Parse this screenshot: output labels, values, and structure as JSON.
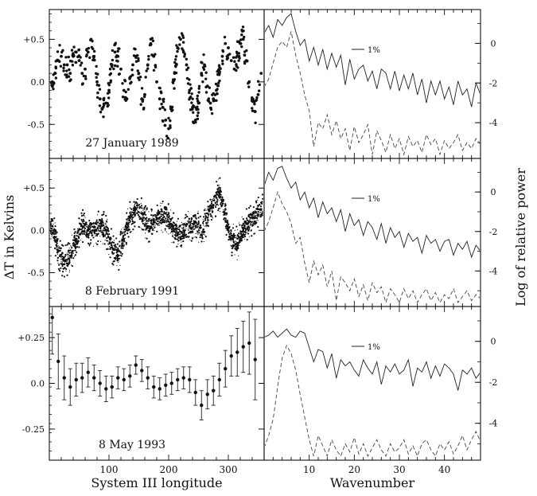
{
  "figure": {
    "y_axis_label_left": "ΔT in Kelvins",
    "x_axis_label_left": "System III longitude",
    "y_axis_label_right": "Log of relative power",
    "x_axis_label_right": "Wavenumber"
  },
  "chart_data": [
    {
      "type": "scatter",
      "panel": "top-left",
      "annotation": "27 January 1989",
      "xlim": [
        0,
        360
      ],
      "ylim": [
        -0.9,
        0.85
      ],
      "x_ticks": [
        100,
        200,
        300
      ],
      "y_ticks": [
        0.5,
        0.0,
        -0.5
      ],
      "y_tick_labels": [
        "+0.5",
        "0.0",
        "-0.5"
      ],
      "series": [
        {
          "style": "dots",
          "x": [
            5,
            10,
            15,
            20,
            25,
            30,
            35,
            40,
            45,
            50,
            55,
            60,
            65,
            70,
            75,
            80,
            85,
            90,
            95,
            100,
            105,
            110,
            115,
            120,
            125,
            130,
            135,
            140,
            145,
            150,
            155,
            160,
            165,
            170,
            175,
            180,
            185,
            190,
            195,
            200,
            205,
            210,
            215,
            220,
            225,
            230,
            235,
            240,
            245,
            250,
            255,
            260,
            265,
            270,
            275,
            280,
            285,
            290,
            295,
            300,
            305,
            310,
            315,
            320,
            325,
            330,
            335,
            340,
            345,
            350,
            355
          ],
          "y": [
            0.0,
            0.1,
            0.25,
            0.3,
            0.2,
            0.2,
            0.1,
            0.3,
            0.35,
            0.25,
            0.1,
            0.15,
            0.35,
            0.5,
            0.3,
            0.0,
            -0.2,
            -0.3,
            -0.25,
            -0.1,
            0.2,
            0.35,
            0.3,
            0.15,
            -0.1,
            -0.2,
            0.05,
            0.2,
            0.3,
            0.1,
            -0.2,
            -0.15,
            0.2,
            0.45,
            0.3,
            0.0,
            -0.2,
            -0.3,
            -0.45,
            -0.55,
            -0.3,
            0.1,
            0.4,
            0.5,
            0.35,
            0.2,
            -0.1,
            -0.3,
            -0.45,
            -0.25,
            0.1,
            0.2,
            -0.05,
            -0.25,
            -0.2,
            -0.1,
            0.1,
            0.3,
            0.45,
            0.4,
            0.25,
            0.15,
            0.3,
            0.45,
            0.5,
            0.25,
            0.0,
            -0.2,
            -0.35,
            -0.15,
            0.1
          ]
        }
      ]
    },
    {
      "type": "line",
      "panel": "top-right",
      "legend_label": "1%",
      "xlim": [
        0,
        48
      ],
      "ylim": [
        -5.8,
        1.7
      ],
      "y_ticks": [
        0,
        -2,
        -4
      ],
      "y_tick_labels": [
        "0",
        "-2",
        "-4"
      ],
      "series": [
        {
          "style": "solid",
          "x": [
            0,
            1,
            2,
            3,
            4,
            5,
            6,
            7,
            8,
            9,
            10,
            11,
            12,
            13,
            14,
            15,
            16,
            17,
            18,
            19,
            20,
            21,
            22,
            23,
            24,
            25,
            26,
            27,
            28,
            29,
            30,
            31,
            32,
            33,
            34,
            35,
            36,
            37,
            38,
            39,
            40,
            41,
            42,
            43,
            44,
            45,
            46,
            47,
            48
          ],
          "y": [
            0.5,
            0.9,
            0.3,
            1.2,
            0.9,
            1.3,
            1.5,
            0.6,
            -0.1,
            0.2,
            -0.9,
            -0.2,
            -1.1,
            -0.3,
            -1.3,
            -0.5,
            -1.2,
            -0.6,
            -2.1,
            -0.8,
            -1.8,
            -1.3,
            -1.1,
            -1.9,
            -1.4,
            -2.3,
            -1.3,
            -1.5,
            -2.3,
            -1.4,
            -2.4,
            -1.6,
            -2.3,
            -1.5,
            -2.6,
            -1.8,
            -3.0,
            -1.9,
            -2.6,
            -1.9,
            -2.8,
            -2.2,
            -3.1,
            -1.9,
            -2.6,
            -2.3,
            -3.2,
            -2.0,
            -2.6
          ]
        },
        {
          "style": "dashed",
          "x": [
            0,
            1,
            2,
            3,
            4,
            5,
            6,
            7,
            8,
            9,
            10,
            11,
            12,
            13,
            14,
            15,
            16,
            17,
            18,
            19,
            20,
            21,
            22,
            23,
            24,
            25,
            26,
            27,
            28,
            29,
            30,
            31,
            32,
            33,
            34,
            35,
            36,
            37,
            38,
            39,
            40,
            41,
            42,
            43,
            44,
            45,
            46,
            47,
            48
          ],
          "y": [
            -2.2,
            -1.8,
            -1.0,
            -0.2,
            0.1,
            -0.2,
            0.6,
            -0.6,
            -1.5,
            -2.6,
            -3.4,
            -5.2,
            -4.0,
            -4.3,
            -3.6,
            -4.6,
            -3.9,
            -4.8,
            -4.3,
            -5.4,
            -4.2,
            -5.0,
            -4.6,
            -4.1,
            -5.6,
            -4.4,
            -4.9,
            -5.5,
            -4.6,
            -5.3,
            -4.8,
            -5.6,
            -4.7,
            -5.2,
            -4.9,
            -5.5,
            -4.6,
            -5.1,
            -4.8,
            -5.6,
            -4.9,
            -5.3,
            -5.0,
            -4.6,
            -5.4,
            -5.0,
            -5.3,
            -4.8,
            -5.1
          ]
        }
      ]
    },
    {
      "type": "scatter",
      "panel": "middle-left",
      "annotation": "8 February 1991",
      "xlim": [
        0,
        360
      ],
      "ylim": [
        -0.9,
        0.85
      ],
      "y_ticks": [
        0.5,
        0.0,
        -0.5
      ],
      "y_tick_labels": [
        "+0.5",
        "0.0",
        "-0.5"
      ],
      "series": [
        {
          "style": "dense-dots",
          "x": [
            5,
            15,
            25,
            35,
            45,
            55,
            65,
            75,
            85,
            95,
            105,
            115,
            125,
            135,
            145,
            155,
            165,
            175,
            185,
            195,
            205,
            215,
            225,
            235,
            245,
            255,
            265,
            275,
            285,
            295,
            305,
            315,
            325,
            335,
            345,
            355
          ],
          "y": [
            0.05,
            -0.25,
            -0.4,
            -0.3,
            -0.1,
            0.05,
            0.0,
            0.0,
            0.05,
            0.0,
            -0.2,
            -0.3,
            -0.1,
            0.15,
            0.25,
            0.2,
            0.05,
            0.1,
            0.15,
            0.2,
            0.05,
            -0.05,
            0.0,
            0.05,
            0.1,
            -0.05,
            0.15,
            0.3,
            0.45,
            0.2,
            -0.1,
            -0.15,
            0.0,
            0.1,
            0.15,
            0.25
          ]
        }
      ]
    },
    {
      "type": "line",
      "panel": "middle-right",
      "legend_label": "1%",
      "xlim": [
        0,
        48
      ],
      "ylim": [
        -5.8,
        1.7
      ],
      "y_ticks": [
        0,
        -2,
        -4
      ],
      "y_tick_labels": [
        "0",
        "-2",
        "-4"
      ],
      "series": [
        {
          "style": "solid",
          "x": [
            0,
            1,
            2,
            3,
            4,
            5,
            6,
            7,
            8,
            9,
            10,
            11,
            12,
            13,
            14,
            15,
            16,
            17,
            18,
            19,
            20,
            21,
            22,
            23,
            24,
            25,
            26,
            27,
            28,
            29,
            30,
            31,
            32,
            33,
            34,
            35,
            36,
            37,
            38,
            39,
            40,
            41,
            42,
            43,
            44,
            45,
            46,
            47,
            48
          ],
          "y": [
            0.3,
            1.0,
            0.6,
            1.2,
            1.3,
            0.7,
            0.2,
            0.5,
            -0.4,
            0.0,
            -0.8,
            -0.3,
            -1.3,
            -0.5,
            -1.1,
            -0.8,
            -1.5,
            -0.9,
            -2.0,
            -1.1,
            -1.7,
            -1.4,
            -2.2,
            -1.5,
            -1.8,
            -2.4,
            -1.6,
            -2.6,
            -1.8,
            -2.3,
            -2.0,
            -2.8,
            -2.1,
            -2.5,
            -2.3,
            -3.1,
            -2.2,
            -2.6,
            -2.4,
            -3.0,
            -2.5,
            -2.4,
            -3.2,
            -2.6,
            -2.9,
            -2.5,
            -3.3,
            -2.7,
            -3.0
          ]
        },
        {
          "style": "dashed",
          "x": [
            0,
            1,
            2,
            3,
            4,
            5,
            6,
            7,
            8,
            9,
            10,
            11,
            12,
            13,
            14,
            15,
            16,
            17,
            18,
            19,
            20,
            21,
            22,
            23,
            24,
            25,
            26,
            27,
            28,
            29,
            30,
            31,
            32,
            33,
            34,
            35,
            36,
            37,
            38,
            39,
            40,
            41,
            42,
            43,
            44,
            45,
            46,
            47,
            48
          ],
          "y": [
            -2.0,
            -1.5,
            -0.8,
            0.0,
            -0.6,
            -1.0,
            -1.6,
            -2.6,
            -2.3,
            -3.6,
            -4.6,
            -3.5,
            -4.2,
            -3.7,
            -4.8,
            -4.0,
            -5.5,
            -4.3,
            -4.6,
            -5.0,
            -4.4,
            -5.3,
            -4.7,
            -5.5,
            -4.6,
            -5.1,
            -4.8,
            -5.6,
            -4.9,
            -5.2,
            -5.6,
            -4.9,
            -5.4,
            -5.0,
            -5.6,
            -5.2,
            -4.9,
            -5.5,
            -5.1,
            -5.6,
            -5.2,
            -5.4,
            -4.9,
            -5.6,
            -5.3,
            -5.0,
            -5.5,
            -5.2,
            -5.4
          ]
        }
      ]
    },
    {
      "type": "scatter",
      "panel": "bottom-left",
      "annotation": "8 May 1993",
      "xlim": [
        0,
        360
      ],
      "ylim": [
        -0.42,
        0.42
      ],
      "x_ticks": [
        100,
        200,
        300
      ],
      "x_tick_labels": [
        "100",
        "200",
        "300"
      ],
      "y_ticks": [
        0.25,
        0.0,
        -0.25
      ],
      "y_tick_labels": [
        "+0.25",
        "0.0",
        "-0.25"
      ],
      "series": [
        {
          "style": "points-with-error-bars",
          "x": [
            5,
            15,
            25,
            35,
            45,
            55,
            65,
            75,
            85,
            95,
            105,
            115,
            125,
            135,
            145,
            155,
            165,
            175,
            185,
            195,
            205,
            215,
            225,
            235,
            245,
            255,
            265,
            275,
            285,
            295,
            305,
            315,
            325,
            335,
            345
          ],
          "y": [
            0.36,
            0.12,
            0.03,
            -0.02,
            0.02,
            0.03,
            0.06,
            0.03,
            0.0,
            -0.03,
            -0.02,
            0.03,
            0.02,
            0.04,
            0.1,
            0.07,
            0.03,
            -0.02,
            -0.03,
            -0.01,
            0.0,
            0.02,
            0.03,
            0.02,
            -0.05,
            -0.12,
            -0.06,
            -0.04,
            0.02,
            0.08,
            0.15,
            0.17,
            0.2,
            0.22,
            0.13
          ],
          "err": [
            0.2,
            0.15,
            0.12,
            0.1,
            0.09,
            0.08,
            0.08,
            0.07,
            0.07,
            0.07,
            0.06,
            0.06,
            0.06,
            0.06,
            0.05,
            0.06,
            0.06,
            0.06,
            0.06,
            0.06,
            0.06,
            0.06,
            0.06,
            0.07,
            0.07,
            0.08,
            0.08,
            0.08,
            0.09,
            0.1,
            0.11,
            0.13,
            0.14,
            0.17,
            0.22
          ]
        }
      ]
    },
    {
      "type": "line",
      "panel": "bottom-right",
      "legend_label": "1%",
      "xlim": [
        0,
        48
      ],
      "ylim": [
        -5.8,
        1.7
      ],
      "x_ticks": [
        10,
        20,
        30,
        40
      ],
      "x_tick_labels": [
        "10",
        "20",
        "30",
        "40"
      ],
      "y_ticks": [
        0,
        -2,
        -4
      ],
      "y_tick_labels": [
        "0",
        "-2",
        "-4"
      ],
      "series": [
        {
          "style": "solid",
          "x": [
            0,
            1,
            2,
            3,
            4,
            5,
            6,
            7,
            8,
            9,
            10,
            11,
            12,
            13,
            14,
            15,
            16,
            17,
            18,
            19,
            20,
            21,
            22,
            23,
            24,
            25,
            26,
            27,
            28,
            29,
            30,
            31,
            32,
            33,
            34,
            35,
            36,
            37,
            38,
            39,
            40,
            41,
            42,
            43,
            44,
            45,
            46,
            47,
            48
          ],
          "y": [
            0.2,
            0.3,
            0.5,
            0.2,
            0.4,
            0.6,
            0.3,
            0.2,
            0.5,
            0.4,
            -0.3,
            -1.0,
            -0.4,
            -0.5,
            -1.3,
            -0.6,
            -1.8,
            -0.9,
            -1.2,
            -1.0,
            -1.4,
            -1.7,
            -0.9,
            -1.3,
            -1.6,
            -1.0,
            -2.1,
            -1.2,
            -1.5,
            -1.1,
            -1.6,
            -1.4,
            -0.9,
            -2.2,
            -1.3,
            -1.5,
            -1.0,
            -1.8,
            -1.2,
            -1.7,
            -1.1,
            -1.3,
            -1.6,
            -2.4,
            -1.4,
            -1.6,
            -1.3,
            -1.8,
            -1.5
          ]
        },
        {
          "style": "dashed",
          "x": [
            0,
            1,
            2,
            3,
            4,
            5,
            6,
            7,
            8,
            9,
            10,
            11,
            12,
            13,
            14,
            15,
            16,
            17,
            18,
            19,
            20,
            21,
            22,
            23,
            24,
            25,
            26,
            27,
            28,
            29,
            30,
            31,
            32,
            33,
            34,
            35,
            36,
            37,
            38,
            39,
            40,
            41,
            42,
            43,
            44,
            45,
            46,
            47,
            48
          ],
          "y": [
            -5.2,
            -4.6,
            -3.8,
            -2.2,
            -0.8,
            -0.2,
            -0.6,
            -1.4,
            -2.6,
            -3.7,
            -4.8,
            -5.6,
            -4.6,
            -5.1,
            -5.6,
            -4.8,
            -5.3,
            -5.6,
            -5.0,
            -5.4,
            -4.7,
            -5.5,
            -5.0,
            -5.6,
            -5.2,
            -4.8,
            -5.3,
            -5.6,
            -5.0,
            -5.4,
            -5.2,
            -4.8,
            -5.5,
            -5.1,
            -5.6,
            -5.0,
            -4.8,
            -5.3,
            -5.6,
            -5.0,
            -5.3,
            -4.9,
            -5.5,
            -5.1,
            -4.6,
            -5.3,
            -4.8,
            -4.4,
            -4.9
          ]
        }
      ]
    }
  ]
}
